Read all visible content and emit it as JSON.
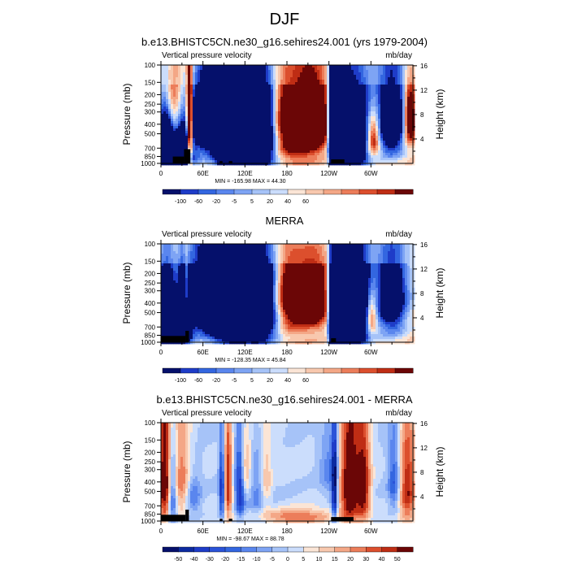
{
  "figure_title": "DJF",
  "chart_data": [
    {
      "type": "heatmap",
      "title": "b.e13.BHISTC5CN.ne30_g16.sehires24.001 (yrs 1979-2004)",
      "left_label": "Vertical pressure velocity",
      "right_label": "mb/day",
      "ylabel": "Pressure (mb)",
      "ylabel_right": "Height (km)",
      "stats": "MIN = -165.98  MAX = 44.30",
      "x_ticks": [
        "0",
        "60E",
        "120E",
        "180",
        "120W",
        "60W"
      ],
      "x_tick_lon": [
        0,
        60,
        120,
        180,
        240,
        300
      ],
      "xlim": [
        0,
        360
      ],
      "y_ticks": [
        100,
        150,
        200,
        250,
        300,
        400,
        500,
        700,
        850,
        1000
      ],
      "ylim": [
        1000,
        100
      ],
      "height_ticks": [
        4,
        8,
        12,
        16
      ],
      "colorbar_labels": [
        "-100",
        "-60",
        "-20",
        "-5",
        "5",
        "20",
        "40",
        "60"
      ],
      "colorbar_colors": [
        "#05106b",
        "#1e3cc8",
        "#3366e0",
        "#5a86ee",
        "#7ea4f4",
        "#a6c3f8",
        "#cbddfc",
        "#fbe5d6",
        "#f8c8ae",
        "#f4a786",
        "#ec7d5a",
        "#dc4f2d",
        "#bf2d14",
        "#6b0606"
      ],
      "scale": 0.37,
      "topo": [
        [
          17,
          33,
          24
        ],
        [
          33,
          42,
          50
        ],
        [
          84,
          88,
          8
        ],
        [
          97,
          102,
          8
        ],
        [
          243,
          262,
          14
        ]
      ],
      "features": [
        {
          "lon": 7,
          "p": 550,
          "w": 8,
          "h": 420,
          "v": -0.9
        },
        {
          "lon": 19,
          "p": 850,
          "w": 18,
          "h": 150,
          "v": -1.0
        },
        {
          "lon": 30,
          "p": 700,
          "w": 7,
          "h": 250,
          "v": -0.8
        },
        {
          "lon": 41,
          "p": 400,
          "w": 3,
          "h": 480,
          "v": 0.9
        },
        {
          "lon": 11,
          "p": 200,
          "w": 10,
          "h": 150,
          "v": 0.5
        },
        {
          "lon": 60,
          "p": 350,
          "w": 14,
          "h": 200,
          "v": -0.8
        },
        {
          "lon": 72,
          "p": 300,
          "w": 8,
          "h": 170,
          "v": -0.55
        },
        {
          "lon": 104,
          "p": 450,
          "w": 22,
          "h": 430,
          "v": -1.25
        },
        {
          "lon": 88,
          "p": 400,
          "w": 5,
          "h": 340,
          "v": -1.3
        },
        {
          "lon": 119,
          "p": 450,
          "w": 7,
          "h": 330,
          "v": -1.2
        },
        {
          "lon": 146,
          "p": 450,
          "w": 14,
          "h": 380,
          "v": -1.0
        },
        {
          "lon": 186,
          "p": 400,
          "w": 26,
          "h": 300,
          "v": 0.6
        },
        {
          "lon": 216,
          "p": 350,
          "w": 14,
          "h": 200,
          "v": 0.7
        },
        {
          "lon": 246,
          "p": 450,
          "w": 4,
          "h": 380,
          "v": -1.5
        },
        {
          "lon": 258,
          "p": 500,
          "w": 7,
          "h": 380,
          "v": -1.15
        },
        {
          "lon": 276,
          "p": 500,
          "w": 16,
          "h": 400,
          "v": -0.9
        },
        {
          "lon": 303,
          "p": 550,
          "w": 7,
          "h": 180,
          "v": 0.6
        },
        {
          "lon": 330,
          "p": 350,
          "w": 15,
          "h": 320,
          "v": -0.7
        },
        {
          "lon": 355,
          "p": 350,
          "w": 6,
          "h": 180,
          "v": 0.6
        }
      ]
    },
    {
      "type": "heatmap",
      "title": "MERRA",
      "left_label": "Vertical pressure velocity",
      "right_label": "mb/day",
      "ylabel": "Pressure (mb)",
      "ylabel_right": "Height (km)",
      "stats": "MIN = -128.35  MAX = 45.84",
      "x_ticks": [
        "0",
        "60E",
        "120E",
        "180",
        "120W",
        "60W"
      ],
      "x_tick_lon": [
        0,
        60,
        120,
        180,
        240,
        300
      ],
      "xlim": [
        0,
        360
      ],
      "y_ticks": [
        100,
        150,
        200,
        250,
        300,
        400,
        500,
        700,
        850,
        1000
      ],
      "ylim": [
        1000,
        100
      ],
      "height_ticks": [
        4,
        8,
        12,
        16
      ],
      "colorbar_labels": [
        "-100",
        "-60",
        "-20",
        "-5",
        "5",
        "20",
        "40",
        "60"
      ],
      "colorbar_colors": [
        "#05106b",
        "#1e3cc8",
        "#3366e0",
        "#5a86ee",
        "#7ea4f4",
        "#a6c3f8",
        "#cbddfc",
        "#fbe5d6",
        "#f8c8ae",
        "#f4a786",
        "#ec7d5a",
        "#dc4f2d",
        "#bf2d14",
        "#6b0606"
      ],
      "scale": 0.37,
      "topo": [
        [
          0,
          35,
          22
        ],
        [
          35,
          40,
          40
        ],
        [
          243,
          250,
          14
        ]
      ],
      "features": [
        {
          "lon": 8,
          "p": 550,
          "w": 10,
          "h": 380,
          "v": -0.8
        },
        {
          "lon": 20,
          "p": 850,
          "w": 14,
          "h": 140,
          "v": -0.9
        },
        {
          "lon": 33,
          "p": 500,
          "w": 6,
          "h": 300,
          "v": -0.8
        },
        {
          "lon": 36,
          "p": 450,
          "w": 3,
          "h": 300,
          "v": 0.5
        },
        {
          "lon": 60,
          "p": 350,
          "w": 15,
          "h": 260,
          "v": -0.8
        },
        {
          "lon": 100,
          "p": 450,
          "w": 22,
          "h": 420,
          "v": -1.0
        },
        {
          "lon": 144,
          "p": 400,
          "w": 16,
          "h": 380,
          "v": -0.85
        },
        {
          "lon": 183,
          "p": 350,
          "w": 15,
          "h": 250,
          "v": 0.5
        },
        {
          "lon": 216,
          "p": 350,
          "w": 15,
          "h": 200,
          "v": 0.65
        },
        {
          "lon": 246,
          "p": 500,
          "w": 4,
          "h": 400,
          "v": -1.35
        },
        {
          "lon": 260,
          "p": 500,
          "w": 9,
          "h": 420,
          "v": -1.15
        },
        {
          "lon": 282,
          "p": 450,
          "w": 12,
          "h": 400,
          "v": -0.95
        },
        {
          "lon": 300,
          "p": 550,
          "w": 6,
          "h": 160,
          "v": 0.5
        },
        {
          "lon": 330,
          "p": 350,
          "w": 16,
          "h": 320,
          "v": -0.6
        }
      ]
    },
    {
      "type": "heatmap",
      "title": "b.e13.BHISTC5CN.ne30_g16.sehires24.001 - MERRA",
      "left_label": "Vertical pressure velocity",
      "right_label": "mb/day",
      "ylabel": "Pressure (mb)",
      "ylabel_right": "Height (km)",
      "stats": "MIN = -98.67  MAX = 88.78",
      "x_ticks": [
        "0",
        "60E",
        "120E",
        "180",
        "120W",
        "60W"
      ],
      "x_tick_lon": [
        0,
        60,
        120,
        180,
        240,
        300
      ],
      "xlim": [
        0,
        360
      ],
      "y_ticks": [
        100,
        150,
        200,
        250,
        300,
        400,
        500,
        700,
        850,
        1000
      ],
      "ylim": [
        1000,
        100
      ],
      "height_ticks": [
        4,
        8,
        12,
        16
      ],
      "colorbar_labels": [
        "-50",
        "-40",
        "-30",
        "-20",
        "-15",
        "-10",
        "-5",
        "0",
        "5",
        "10",
        "15",
        "20",
        "30",
        "40",
        "50"
      ],
      "colorbar_colors": [
        "#05106b",
        "#0c2aa0",
        "#1e3cc8",
        "#2a53d8",
        "#3366e0",
        "#5a86ee",
        "#7ea4f4",
        "#a6c3f8",
        "#cbddfc",
        "#fbe5d6",
        "#f8c8ae",
        "#f4a786",
        "#ec7d5a",
        "#dc4f2d",
        "#bf2d14",
        "#6b0606"
      ],
      "scale": 0.85,
      "topo": [
        [
          0,
          35,
          22
        ],
        [
          35,
          40,
          40
        ],
        [
          84,
          88,
          8
        ],
        [
          97,
          102,
          8
        ],
        [
          243,
          275,
          14
        ]
      ],
      "features": [
        {
          "lon": 7,
          "p": 400,
          "w": 8,
          "h": 400,
          "v": 0.95
        },
        {
          "lon": 16,
          "p": 500,
          "w": 5,
          "h": 350,
          "v": -0.9
        },
        {
          "lon": 30,
          "p": 400,
          "w": 10,
          "h": 300,
          "v": 0.5
        },
        {
          "lon": 45,
          "p": 550,
          "w": 8,
          "h": 200,
          "v": -0.4
        },
        {
          "lon": 87,
          "p": 500,
          "w": 3,
          "h": 300,
          "v": -0.7
        },
        {
          "lon": 96,
          "p": 400,
          "w": 4,
          "h": 350,
          "v": 0.7
        },
        {
          "lon": 113,
          "p": 450,
          "w": 5,
          "h": 300,
          "v": -0.8
        },
        {
          "lon": 120,
          "p": 300,
          "w": 6,
          "h": 150,
          "v": 0.5
        },
        {
          "lon": 140,
          "p": 500,
          "w": 12,
          "h": 300,
          "v": -0.35
        },
        {
          "lon": 150,
          "p": 400,
          "w": 6,
          "h": 250,
          "v": 0.45
        },
        {
          "lon": 190,
          "p": 900,
          "w": 40,
          "h": 110,
          "v": 0.5
        },
        {
          "lon": 240,
          "p": 300,
          "w": 10,
          "h": 200,
          "v": -0.3
        },
        {
          "lon": 248,
          "p": 500,
          "w": 3,
          "h": 400,
          "v": -0.85
        },
        {
          "lon": 270,
          "p": 450,
          "w": 10,
          "h": 400,
          "v": 1.0
        },
        {
          "lon": 290,
          "p": 450,
          "w": 7,
          "h": 380,
          "v": 0.75
        },
        {
          "lon": 333,
          "p": 400,
          "w": 6,
          "h": 250,
          "v": -0.45
        },
        {
          "lon": 352,
          "p": 450,
          "w": 8,
          "h": 380,
          "v": 0.7
        }
      ]
    }
  ]
}
